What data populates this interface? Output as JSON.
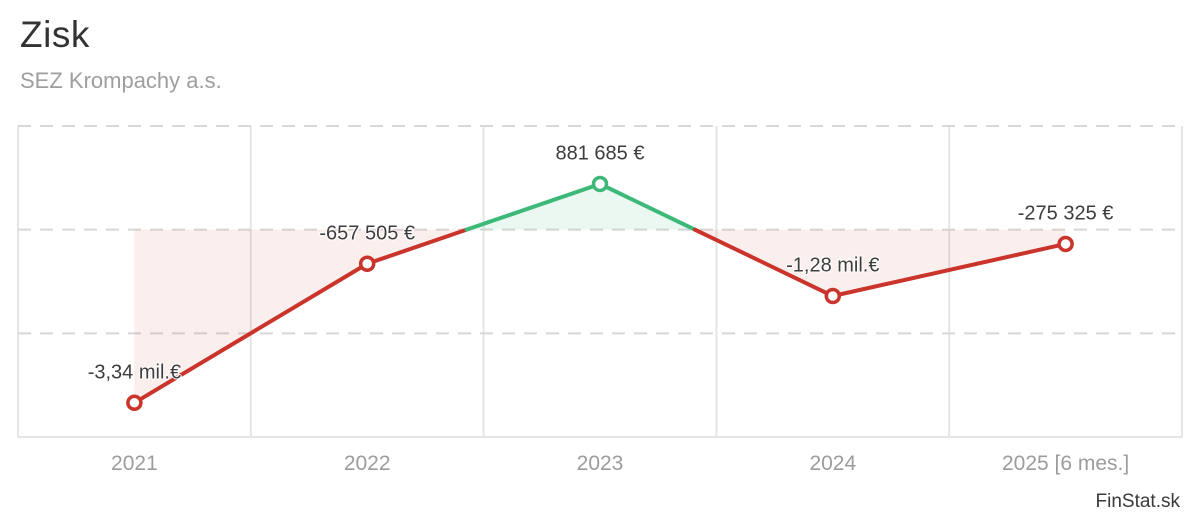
{
  "header": {
    "title": "Zisk",
    "subtitle": "SEZ Krompachy a.s."
  },
  "watermark": "FinStat.sk",
  "chart_data": {
    "type": "line",
    "title": "Zisk",
    "subtitle": "SEZ Krompachy a.s.",
    "categories": [
      "2021",
      "2022",
      "2023",
      "2024",
      "2025 [6 mes.]"
    ],
    "values": [
      -3340000,
      -657505,
      881685,
      -1280000,
      -275325
    ],
    "point_labels": [
      "-3,34 mil.€",
      "-657 505 €",
      "881 685 €",
      "-1,28 mil.€",
      "-275 325 €"
    ],
    "xlabel": "",
    "ylabel": "",
    "ylim": [
      -4000000,
      2000000
    ],
    "grid_step": 2000000,
    "zero_line_style": "dashed",
    "grid": "on",
    "legend_position": "none",
    "colors": {
      "positive": "#3cb878",
      "negative": "#ca342b",
      "positive_fill": "rgba(60,184,120,0.10)",
      "negative_fill": "rgba(202,52,43,0.08)",
      "grid_solid": "#e5e5e5",
      "grid_dashed": "#d8d8d8",
      "axis_text": "#9c9c9c",
      "label_text": "#3d3d3d",
      "marker_fill": "#ffffff"
    }
  }
}
